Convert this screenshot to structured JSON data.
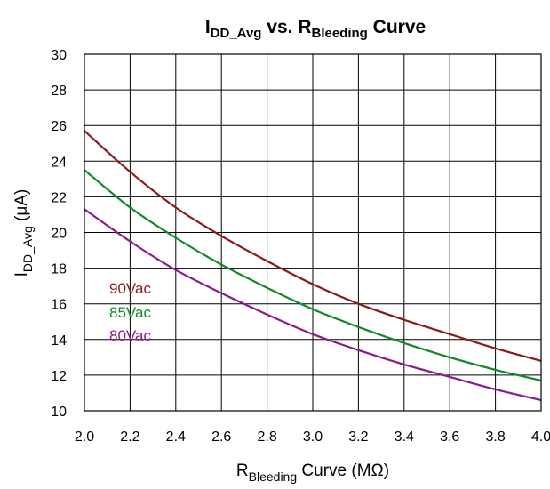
{
  "chart_data": {
    "type": "line",
    "title": {
      "main": "I",
      "main_sub": "DD_Avg",
      "mid": " vs. R",
      "mid_sub": "Bleeding",
      "end": " Curve"
    },
    "xlabel": {
      "main": "R",
      "sub": "Bleeding",
      "rest": " Curve (MΩ)"
    },
    "ylabel": {
      "main": "I",
      "sub": "DD_Avg",
      "rest": " (μA)"
    },
    "xlim": [
      2.0,
      4.0
    ],
    "ylim": [
      10,
      30
    ],
    "x_ticks": [
      "2.0",
      "2.2",
      "2.4",
      "2.6",
      "2.8",
      "3.0",
      "3.2",
      "3.4",
      "3.6",
      "3.8",
      "4.0"
    ],
    "y_ticks": [
      "10",
      "12",
      "14",
      "16",
      "18",
      "20",
      "22",
      "24",
      "26",
      "28",
      "30"
    ],
    "grid": true,
    "legend_placement": "left-middle, inside plot",
    "x": [
      2.0,
      2.2,
      2.4,
      2.6,
      2.8,
      3.0,
      3.2,
      3.4,
      3.6,
      3.8,
      4.0
    ],
    "series": [
      {
        "name": "90Vac",
        "color": "#8b1a1a",
        "values": [
          25.7,
          23.4,
          21.4,
          19.8,
          18.4,
          17.1,
          16.0,
          15.1,
          14.3,
          13.5,
          12.8
        ]
      },
      {
        "name": "85Vac",
        "color": "#10892a",
        "values": [
          23.5,
          21.4,
          19.7,
          18.2,
          16.9,
          15.7,
          14.7,
          13.8,
          13.0,
          12.3,
          11.7
        ]
      },
      {
        "name": "80Vac",
        "color": "#8b1a8b",
        "values": [
          21.3,
          19.5,
          17.9,
          16.6,
          15.4,
          14.3,
          13.4,
          12.6,
          11.9,
          11.2,
          10.6
        ]
      }
    ]
  }
}
